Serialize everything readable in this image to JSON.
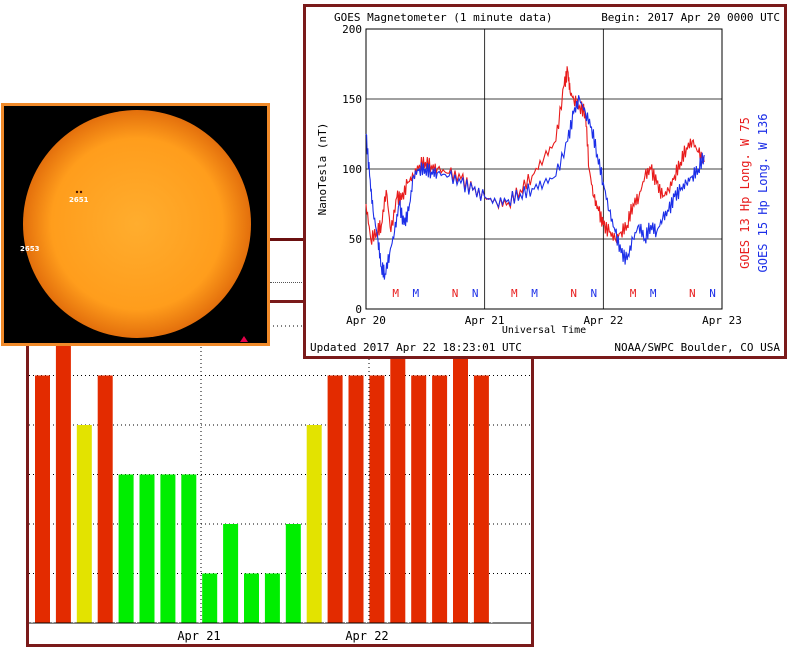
{
  "kp_panel": {
    "x_labels": [
      "Apr 21",
      "Apr 22"
    ]
  },
  "sun_panel": {
    "regions": [
      "2651",
      "2653"
    ]
  },
  "chart_data": [
    {
      "type": "bar",
      "title": "",
      "ylim": [
        0,
        6
      ],
      "values": [
        5,
        6,
        4,
        5,
        3,
        3,
        3,
        3,
        1,
        2,
        1,
        1,
        2,
        4,
        5,
        5,
        5,
        6,
        5,
        5,
        6,
        5
      ],
      "colors_by_level": {
        "low": "#00ee00",
        "moderate": "#e3e300",
        "high": "#e32b00"
      }
    },
    {
      "type": "line",
      "title": "GOES Magnetometer (1 minute data)",
      "begin": "Begin:  2017 Apr 20 0000 UTC",
      "updated": "Updated 2017 Apr 22 18:23:01 UTC",
      "credit": "NOAA/SWPC Boulder, CO USA",
      "xlabel": "Universal Time",
      "ylabel": "NanoTesla (nT)",
      "x_ticks": [
        "Apr 20",
        "Apr 21",
        "Apr 22",
        "Apr 23"
      ],
      "y_ticks": [
        "0",
        "50",
        "100",
        "150",
        "200"
      ],
      "ylim": [
        0,
        200
      ],
      "xlim_days": [
        0,
        3
      ],
      "series": [
        {
          "name": "GOES 13 Hp",
          "side_label": "GOES 13 Hp   Long. W 75",
          "color": "#e81c1c",
          "x": [
            0,
            0.04,
            0.09,
            0.13,
            0.17,
            0.21,
            0.26,
            0.3,
            0.35,
            0.4,
            0.45,
            0.5,
            0.55,
            0.6,
            0.7,
            0.8,
            0.9,
            1.0,
            1.1,
            1.2,
            1.3,
            1.4,
            1.5,
            1.6,
            1.67,
            1.7,
            1.72,
            1.75,
            1.8,
            1.85,
            1.88,
            1.92,
            1.96,
            2.0,
            2.05,
            2.1,
            2.15,
            2.2,
            2.25,
            2.3,
            2.35,
            2.4,
            2.45,
            2.5,
            2.55,
            2.6,
            2.65,
            2.7,
            2.75,
            2.8,
            2.85
          ],
          "values": [
            75,
            50,
            55,
            60,
            85,
            55,
            80,
            78,
            90,
            95,
            103,
            105,
            102,
            100,
            97,
            93,
            85,
            80,
            76,
            76,
            85,
            95,
            108,
            120,
            160,
            170,
            155,
            150,
            145,
            140,
            100,
            80,
            70,
            60,
            55,
            50,
            55,
            60,
            75,
            80,
            95,
            100,
            90,
            80,
            85,
            95,
            105,
            115,
            120,
            112,
            105
          ]
        },
        {
          "name": "GOES 15 Hp",
          "side_label": "GOES 15 Hp   Long. W 136",
          "color": "#1c2fe8",
          "x": [
            0,
            0.03,
            0.06,
            0.1,
            0.13,
            0.16,
            0.2,
            0.24,
            0.28,
            0.32,
            0.36,
            0.4,
            0.45,
            0.5,
            0.55,
            0.6,
            0.7,
            0.8,
            0.9,
            1.0,
            1.1,
            1.2,
            1.3,
            1.4,
            1.5,
            1.6,
            1.7,
            1.75,
            1.8,
            1.85,
            1.9,
            1.95,
            2.0,
            2.05,
            2.1,
            2.15,
            2.2,
            2.25,
            2.3,
            2.35,
            2.4,
            2.45,
            2.5,
            2.55,
            2.6,
            2.65,
            2.7,
            2.75,
            2.8,
            2.85
          ],
          "values": [
            125,
            95,
            70,
            50,
            30,
            25,
            40,
            55,
            75,
            60,
            70,
            95,
            100,
            100,
            98,
            97,
            95,
            90,
            85,
            80,
            76,
            78,
            82,
            86,
            90,
            95,
            120,
            140,
            150,
            140,
            130,
            110,
            90,
            70,
            55,
            40,
            35,
            50,
            60,
            50,
            60,
            55,
            65,
            70,
            80,
            85,
            90,
            95,
            100,
            110
          ]
        }
      ],
      "markers": [
        {
          "day": 0.25,
          "label": "M",
          "color": "#e81c1c"
        },
        {
          "day": 0.42,
          "label": "M",
          "color": "#1c2fe8"
        },
        {
          "day": 0.75,
          "label": "N",
          "color": "#e81c1c"
        },
        {
          "day": 0.92,
          "label": "N",
          "color": "#1c2fe8"
        },
        {
          "day": 1.25,
          "label": "M",
          "color": "#e81c1c"
        },
        {
          "day": 1.42,
          "label": "M",
          "color": "#1c2fe8"
        },
        {
          "day": 1.75,
          "label": "N",
          "color": "#e81c1c"
        },
        {
          "day": 1.92,
          "label": "N",
          "color": "#1c2fe8"
        },
        {
          "day": 2.25,
          "label": "M",
          "color": "#e81c1c"
        },
        {
          "day": 2.42,
          "label": "M",
          "color": "#1c2fe8"
        },
        {
          "day": 2.75,
          "label": "N",
          "color": "#e81c1c"
        },
        {
          "day": 2.92,
          "label": "N",
          "color": "#1c2fe8"
        }
      ]
    }
  ]
}
